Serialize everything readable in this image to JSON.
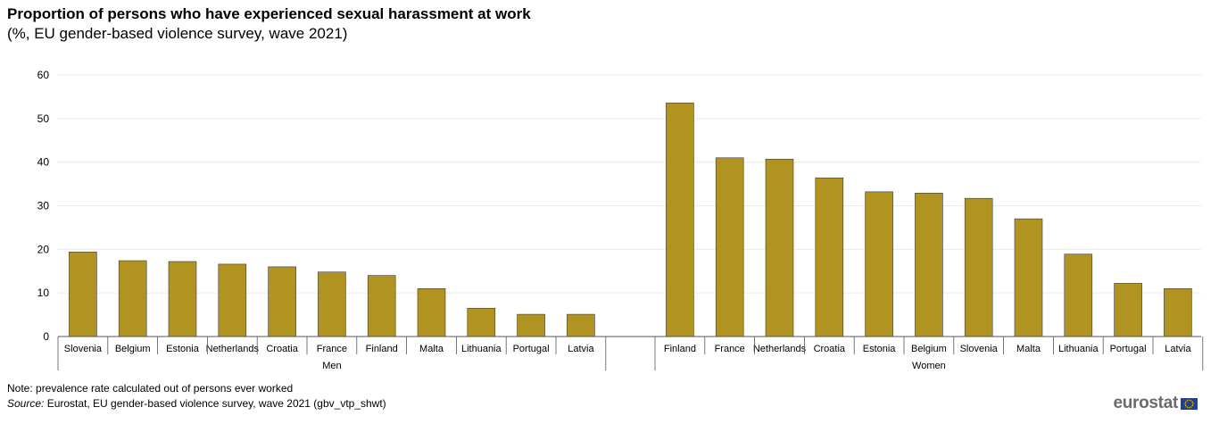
{
  "chart_data": {
    "type": "bar",
    "title": "Proportion of persons who have experienced sexual harassment at work",
    "subtitle": "(%, EU gender-based violence survey, wave 2021)",
    "ylim": [
      0,
      60
    ],
    "yticks": [
      0,
      10,
      20,
      30,
      40,
      50,
      60
    ],
    "grid": true,
    "bar_color": "#b09320",
    "groups": [
      {
        "name": "Men",
        "categories": [
          "Slovenia",
          "Belgium",
          "Estonia",
          "Netherlands",
          "Croatia",
          "France",
          "Finland",
          "Malta",
          "Lithuania",
          "Portugal",
          "Latvia"
        ],
        "values": [
          19.4,
          17.4,
          17.2,
          16.6,
          16.0,
          14.8,
          14.0,
          11.0,
          6.5,
          5.1,
          5.1
        ]
      },
      {
        "name": "Women",
        "categories": [
          "Finland",
          "France",
          "Netherlands",
          "Croatia",
          "Estonia",
          "Belgium",
          "Slovenia",
          "Malta",
          "Lithuania",
          "Portugal",
          "Latvia"
        ],
        "values": [
          53.6,
          41.0,
          40.7,
          36.4,
          33.2,
          32.9,
          31.7,
          27.0,
          18.9,
          12.2,
          11.0
        ]
      }
    ]
  },
  "footer": {
    "note": "Note: prevalence rate calculated out of persons ever worked",
    "source_label": "Source:",
    "source_text": " Eurostat, EU gender-based violence survey, wave 2021 (gbv_vtp_shwt)",
    "logo_text": "eurostat",
    "logo_icon": "eu-flag-icon"
  }
}
